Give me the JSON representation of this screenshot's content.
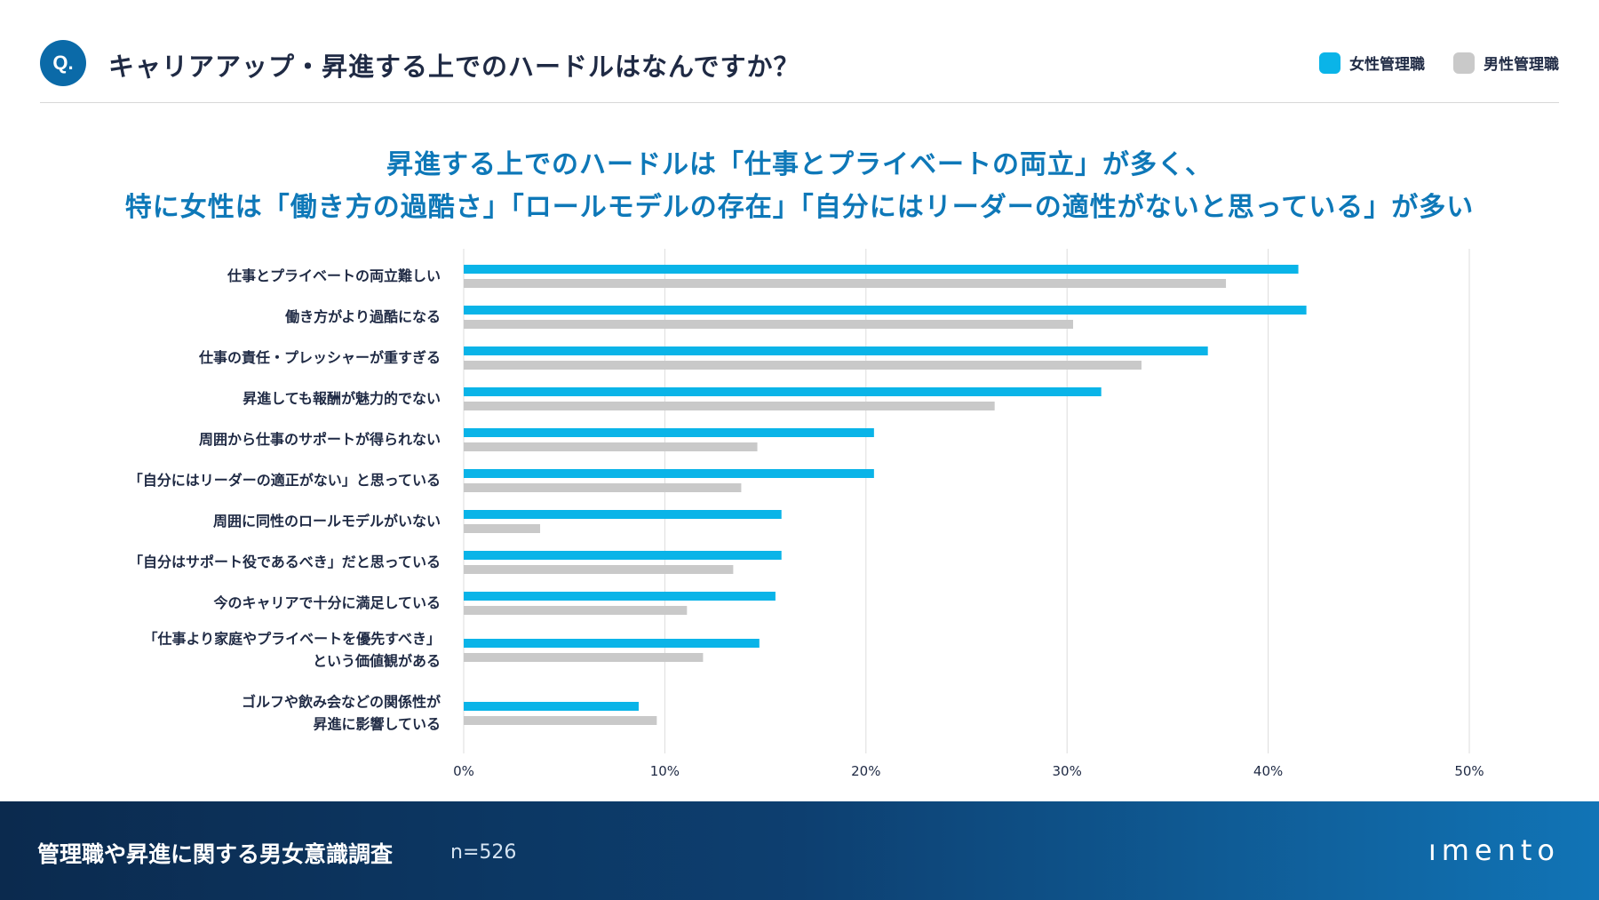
{
  "header": {
    "badge": "Q.",
    "question": "キャリアアップ・昇進する上でのハードルはなんですか？"
  },
  "legend": {
    "female_label": "女性管理職",
    "male_label": "男性管理職"
  },
  "headline": {
    "line1": "昇進する上でのハードルは「仕事とプライベートの両立」が多く、",
    "line2": "特に女性は「働き方の過酷さ」「ロールモデルの存在」「自分にはリーダーの適性がないと思っている」が多い"
  },
  "colors": {
    "female": "#0ab4e8",
    "male": "#c9c9c9",
    "grid": "#dddddd",
    "headline": "#0e78b8",
    "badge": "#0b6aa8"
  },
  "chart_data": {
    "type": "bar",
    "orientation": "horizontal",
    "categories": [
      [
        "仕事とプライベートの両立難しい"
      ],
      [
        "働き方がより過酷になる"
      ],
      [
        "仕事の責任・プレッシャーが重すぎる"
      ],
      [
        "昇進しても報酬が魅力的でない"
      ],
      [
        "周囲から仕事のサポートが得られない"
      ],
      [
        "「自分にはリーダーの適正がない」と思っている"
      ],
      [
        "周囲に同性のロールモデルがいない"
      ],
      [
        "「自分はサポート役であるべき」だと思っている"
      ],
      [
        "今のキャリアで十分に満足している"
      ],
      [
        "「仕事より家庭やプライベートを優先すべき」",
        "という価値観がある"
      ],
      [
        "ゴルフや飲み会などの関係性が",
        "昇進に影響している"
      ]
    ],
    "series": [
      {
        "name": "女性管理職",
        "values": [
          41.5,
          41.9,
          37.0,
          31.7,
          20.4,
          20.4,
          15.8,
          15.8,
          15.5,
          14.7,
          8.7
        ]
      },
      {
        "name": "男性管理職",
        "values": [
          37.9,
          30.3,
          33.7,
          26.4,
          14.6,
          13.8,
          3.8,
          13.4,
          11.1,
          11.9,
          9.6
        ]
      }
    ],
    "xlim": [
      0,
      50
    ],
    "xticks": [
      "0%",
      "10%",
      "20%",
      "30%",
      "40%",
      "50%"
    ],
    "grid": true,
    "legend_position": "top-right"
  },
  "footer": {
    "title": "管理職や昇進に関する男女意識調査",
    "n": "n=526",
    "logo": "ımento"
  }
}
